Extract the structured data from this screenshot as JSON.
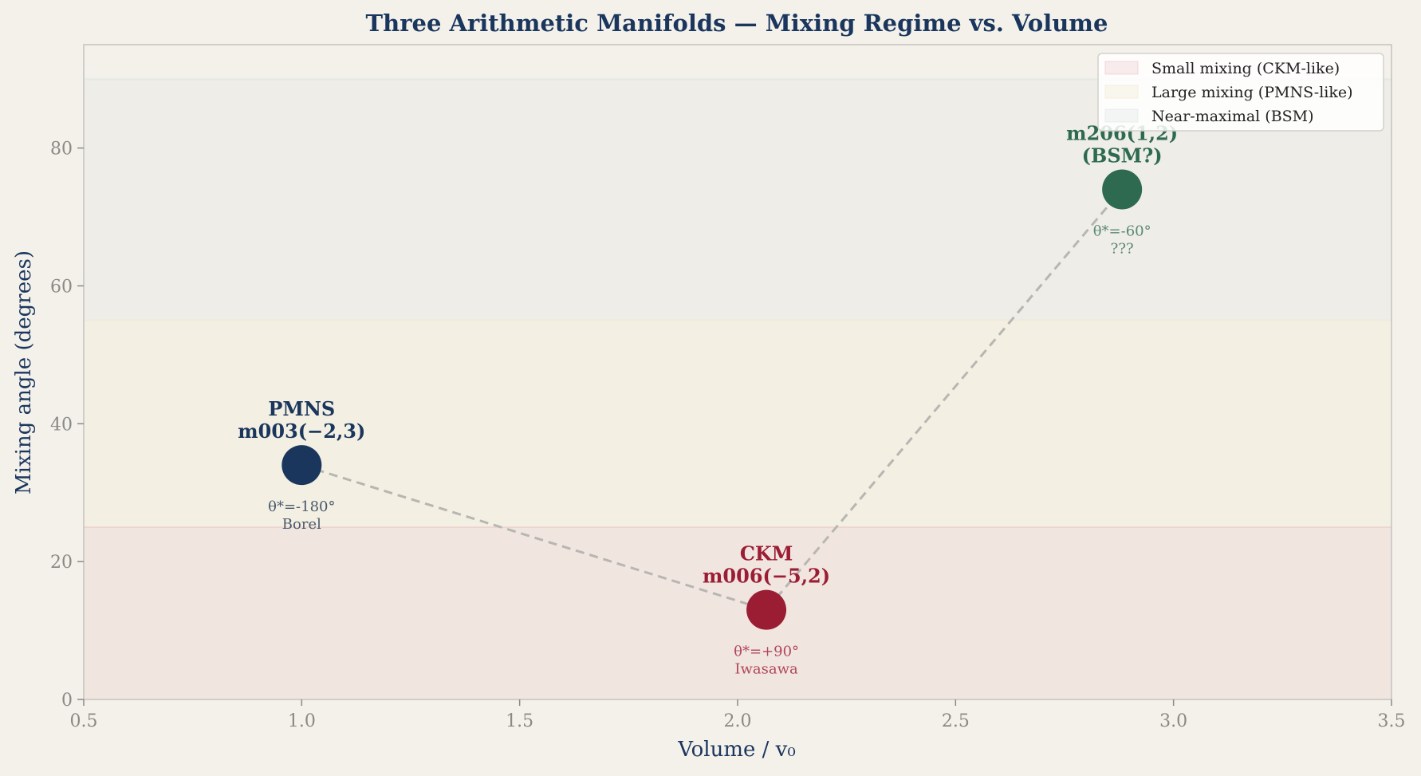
{
  "chart_data": {
    "type": "scatter",
    "title": "Three Arithmetic Manifolds — Mixing Regime vs. Volume",
    "xlabel": "Volume / v₀",
    "ylabel": "Mixing angle (degrees)",
    "xlim": [
      0.5,
      3.5
    ],
    "ylim": [
      0,
      95
    ],
    "xticks": [
      0.5,
      1.0,
      1.5,
      2.0,
      2.5,
      3.0,
      3.5
    ],
    "xtick_labels": [
      "0.5",
      "1.0",
      "1.5",
      "2.0",
      "2.5",
      "3.0",
      "3.5"
    ],
    "yticks": [
      0,
      20,
      40,
      60,
      80
    ],
    "ytick_labels": [
      "0",
      "20",
      "40",
      "60",
      "80"
    ],
    "grid": false,
    "legend_position": "top-right",
    "bands": [
      {
        "name": "Small mixing (CKM-like)",
        "y0": 0,
        "y1": 25,
        "color": "#e8c4c4"
      },
      {
        "name": "Large mixing (PMNS-like)",
        "y0": 25,
        "y1": 55,
        "color": "#f2e8cc"
      },
      {
        "name": "Near-maximal (BSM)",
        "y0": 55,
        "y1": 90,
        "color": "#dde3e0"
      }
    ],
    "points": [
      {
        "x": 1.0,
        "y": 34,
        "label_line1": "PMNS",
        "label_line2": "m003(−2,3)",
        "sub_line1": "θ*=-180°",
        "sub_line2": "Borel",
        "color": "#1a365d",
        "sub_color": "#4a5a6e"
      },
      {
        "x": 2.066,
        "y": 13,
        "label_line1": "CKM",
        "label_line2": "m006(−5,2)",
        "sub_line1": "θ*=+90°",
        "sub_line2": "Iwasawa",
        "color": "#9b1d33",
        "sub_color": "#b0485c"
      },
      {
        "x": 2.882,
        "y": 74,
        "label_line1": "m206(1,2)",
        "label_line2": "(BSM?)",
        "sub_line1": "θ*=-60°",
        "sub_line2": "???",
        "color": "#2d6a4f",
        "sub_color": "#5a8a72"
      }
    ],
    "connector": {
      "style": "dashed",
      "color": "#b8b6b2"
    }
  }
}
